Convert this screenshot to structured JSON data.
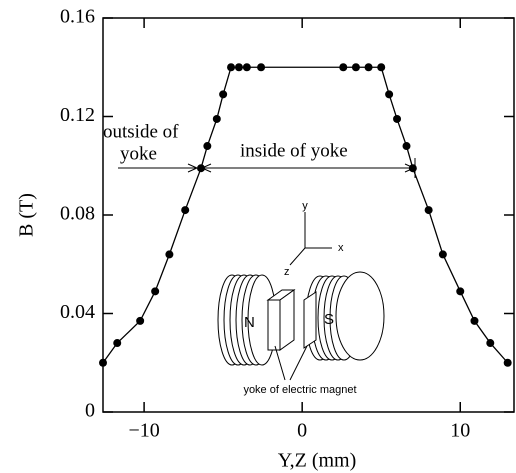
{
  "chart_data": {
    "type": "line",
    "xlabel": "Y,Z (mm)",
    "ylabel": "B (T)",
    "x": [
      -12.6,
      -11.7,
      -10.25,
      -9.3,
      -8.4,
      -7.4,
      -6.4,
      -6.0,
      -5.4,
      -5.0,
      -4.5,
      -4.0,
      -3.5,
      -2.6,
      2.6,
      3.4,
      4.2,
      5.0,
      5.5,
      6.0,
      6.6,
      7.0,
      8.0,
      8.9,
      10.0,
      10.9,
      11.9,
      13.0
    ],
    "series": [
      {
        "color": "#000000",
        "values": [
          0.02,
          0.028,
          0.037,
          0.049,
          0.064,
          0.082,
          0.099,
          0.108,
          0.119,
          0.129,
          0.14,
          0.14,
          0.14,
          0.14,
          0.14,
          0.14,
          0.14,
          0.14,
          0.129,
          0.119,
          0.108,
          0.099,
          0.082,
          0.064,
          0.049,
          0.037,
          0.028,
          0.02
        ]
      }
    ],
    "xlim": [
      -12.6,
      13.4
    ],
    "ylim": [
      0,
      0.16
    ],
    "xticks": [
      {
        "value": -10,
        "label": "−10"
      },
      0,
      10
    ],
    "yticks": [
      0,
      {
        "value": 0.04,
        "label": "0.04"
      },
      {
        "value": 0.08,
        "label": "0.08"
      },
      {
        "value": 0.12,
        "label": "0.12"
      },
      {
        "value": 0.16,
        "label": "0.16"
      }
    ],
    "annotations": [
      "outside of",
      "yoke",
      "inside of yoke",
      "yoke of electric magnet",
      "N",
      "S",
      "x",
      "y",
      "z"
    ]
  }
}
